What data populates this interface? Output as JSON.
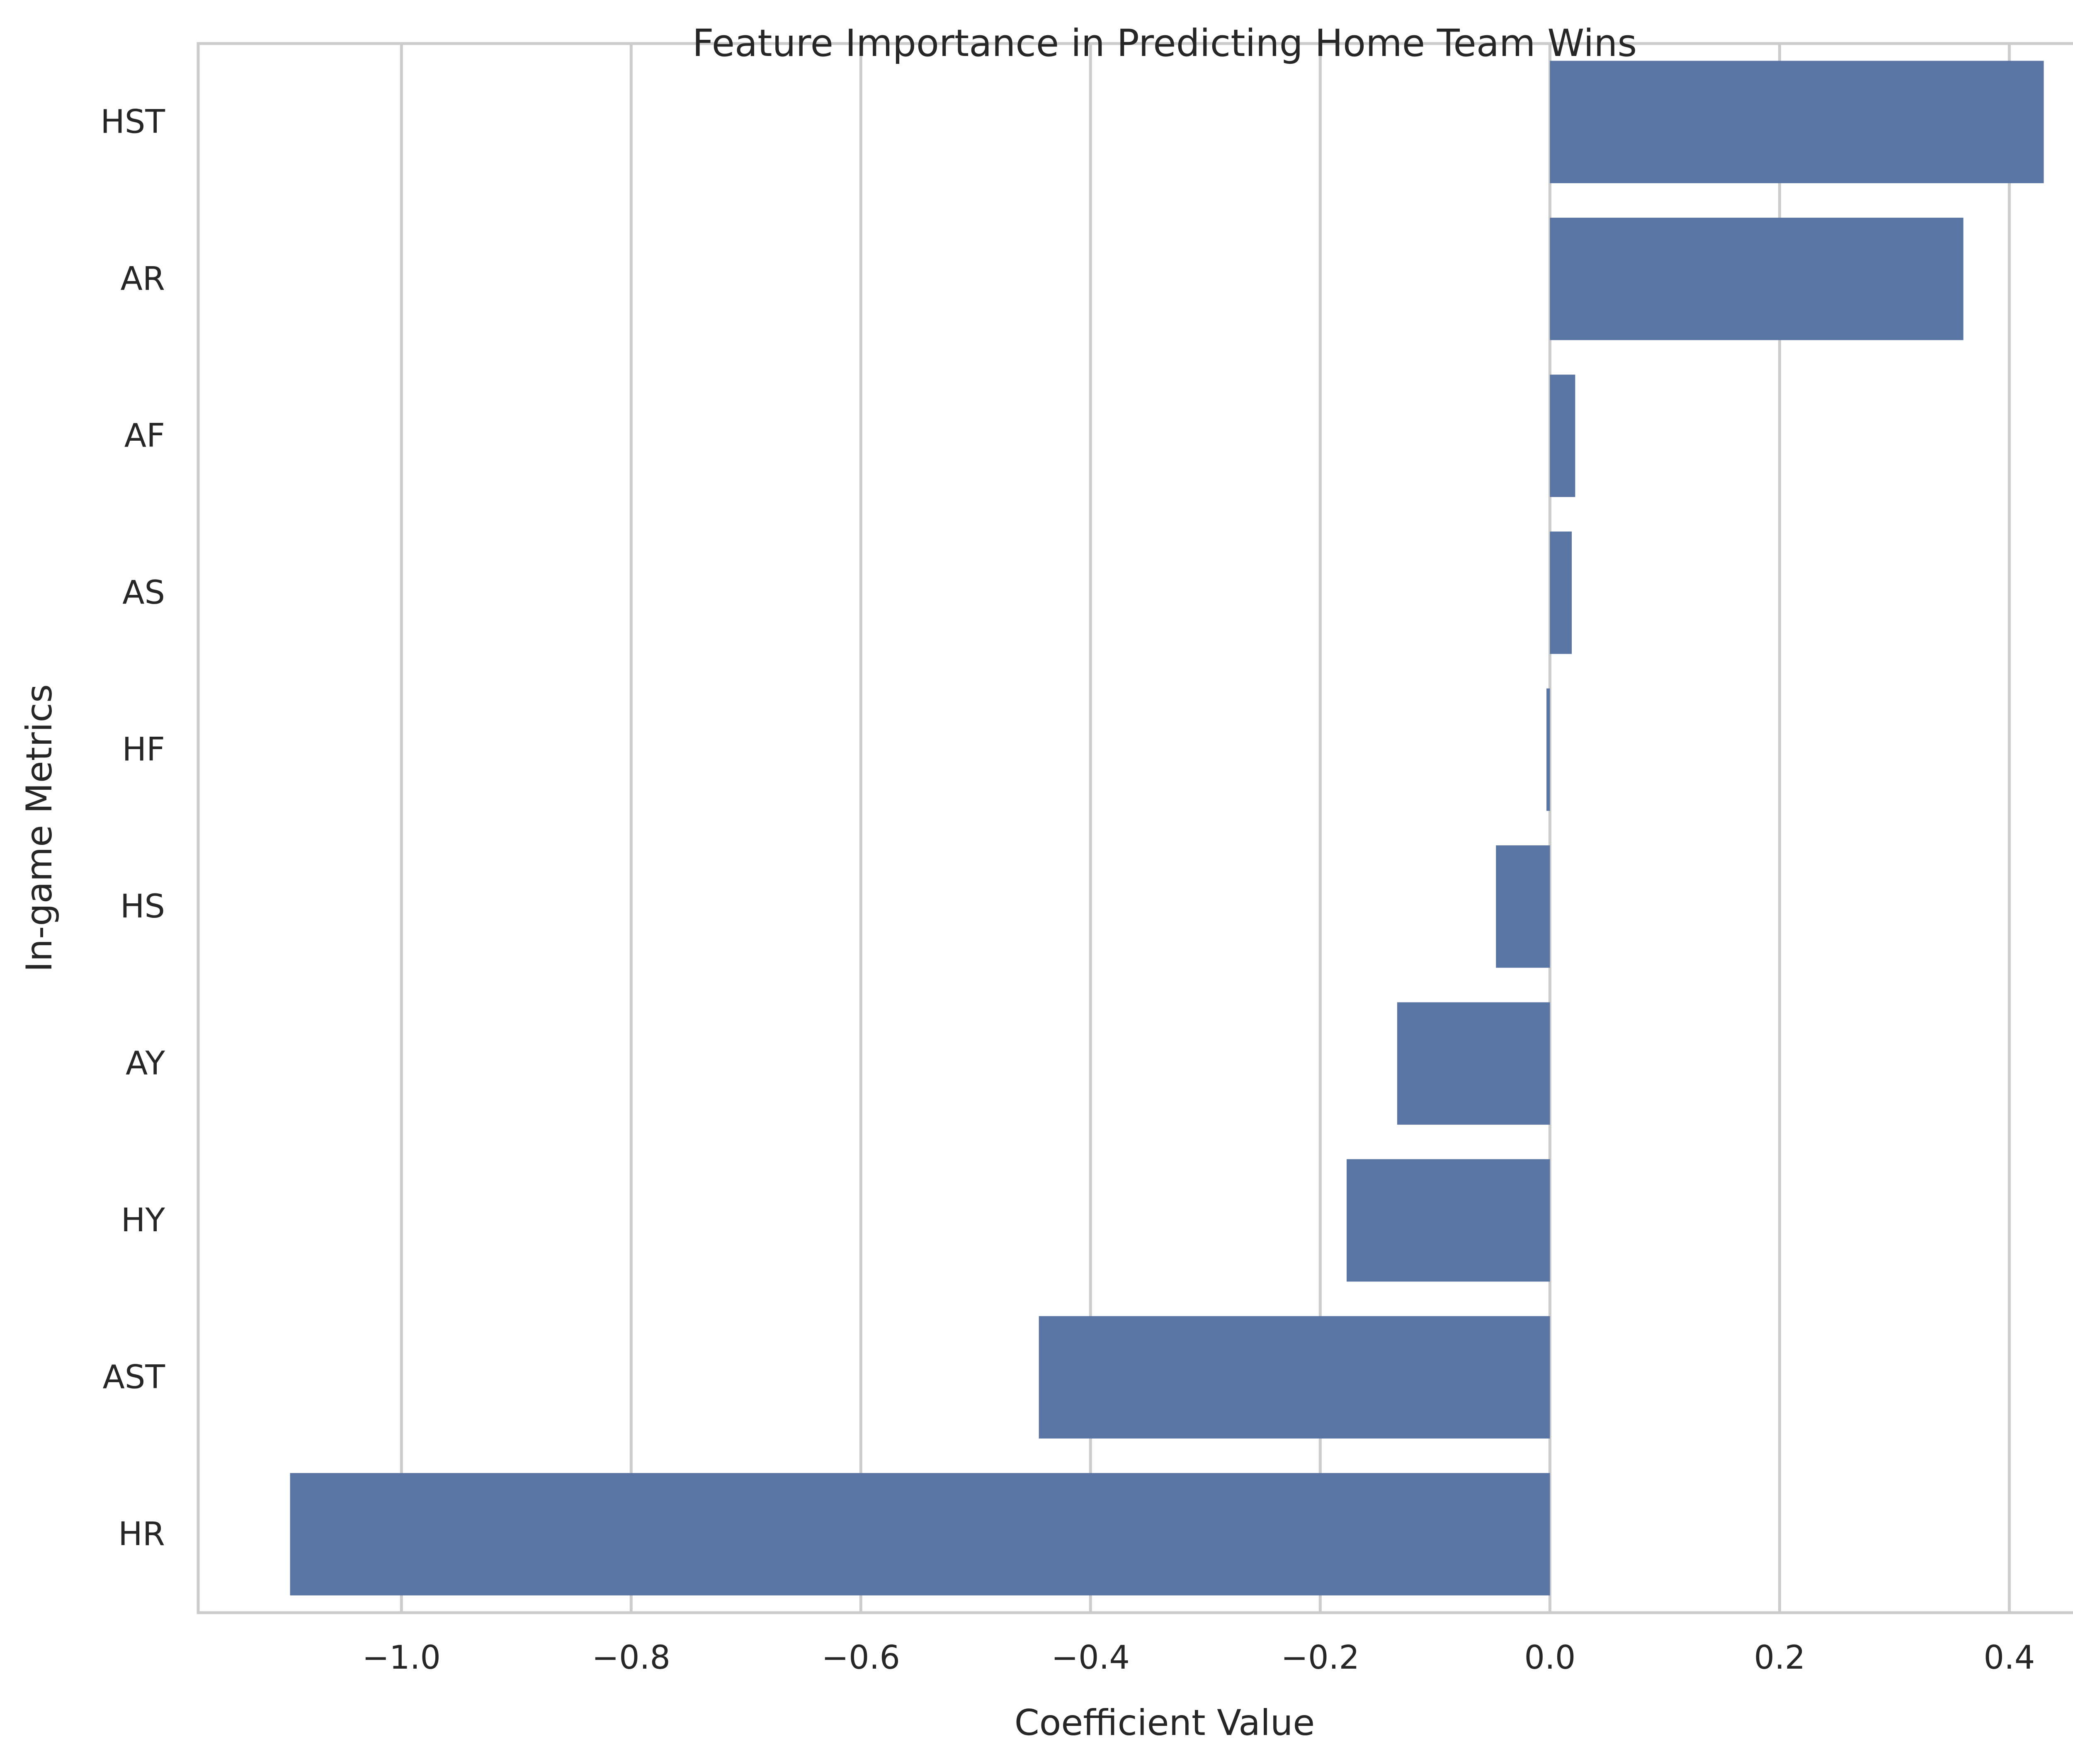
{
  "chart_data": {
    "type": "bar",
    "orientation": "horizontal",
    "title": "Feature Importance in Predicting Home Team Wins",
    "xlabel": "Coefficient Value",
    "ylabel": "In-game Metrics",
    "categories": [
      "HST",
      "AR",
      "AF",
      "AS",
      "HF",
      "HS",
      "AY",
      "HY",
      "AST",
      "HR"
    ],
    "values": [
      0.43,
      0.36,
      0.022,
      0.019,
      -0.003,
      -0.047,
      -0.133,
      -0.177,
      -0.445,
      -1.097
    ],
    "xlim": [
      -1.177,
      0.506
    ],
    "xticks": [
      -1.0,
      -0.8,
      -0.6,
      -0.4,
      -0.2,
      0.0,
      0.2,
      0.4
    ],
    "xtick_labels": [
      "−1.0",
      "−0.8",
      "−0.6",
      "−0.4",
      "−0.2",
      "0.0",
      "0.2",
      "0.4"
    ],
    "grid": true,
    "colors": {
      "bar": "#5975a4",
      "grid": "#cccccc",
      "frame": "#cccccc",
      "text": "#262626",
      "background": "#ffffff"
    }
  }
}
